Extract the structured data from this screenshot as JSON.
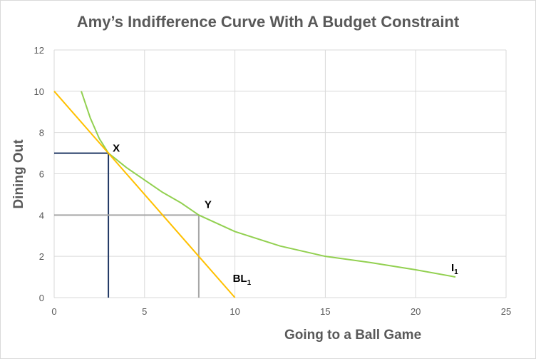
{
  "chart_data": {
    "type": "line",
    "title": "Amy’s Indifference Curve With A Budget Constraint",
    "xlabel": "Going to a Ball Game",
    "ylabel": "Dining Out",
    "xlim": [
      0,
      25
    ],
    "ylim": [
      0,
      12
    ],
    "x_ticks": [
      0,
      5,
      10,
      15,
      20,
      25
    ],
    "y_ticks": [
      0,
      2,
      4,
      6,
      8,
      10,
      12
    ],
    "grid": true,
    "series": [
      {
        "name": "I1",
        "color": "#92d050",
        "points": [
          [
            1.5,
            10
          ],
          [
            2,
            8.7
          ],
          [
            2.5,
            7.7
          ],
          [
            3,
            7
          ],
          [
            4,
            6.3
          ],
          [
            5,
            5.7
          ],
          [
            6,
            5.1
          ],
          [
            7,
            4.6
          ],
          [
            8,
            4
          ],
          [
            10,
            3.2
          ],
          [
            12.5,
            2.5
          ],
          [
            15,
            2
          ],
          [
            17.5,
            1.7
          ],
          [
            20,
            1.35
          ],
          [
            22.2,
            1
          ]
        ]
      },
      {
        "name": "BL1",
        "color": "#ffc000",
        "points": [
          [
            0,
            10
          ],
          [
            10,
            0
          ]
        ]
      }
    ],
    "reference_lines": [
      {
        "point": "X",
        "x": 3,
        "y": 7,
        "color": "#203864"
      },
      {
        "point": "Y",
        "x": 8,
        "y": 4,
        "color": "#a6a6a6"
      }
    ],
    "annotations": [
      {
        "id": "X",
        "text": "X",
        "x": 3,
        "y": 7
      },
      {
        "id": "Y",
        "text": "Y",
        "x": 8,
        "y": 4
      },
      {
        "id": "I1",
        "text": "I",
        "subscript": "1",
        "x": 22.2,
        "y": 1
      },
      {
        "id": "BL1",
        "text": "BL",
        "subscript": "1",
        "x": 10,
        "y": 0
      }
    ]
  }
}
